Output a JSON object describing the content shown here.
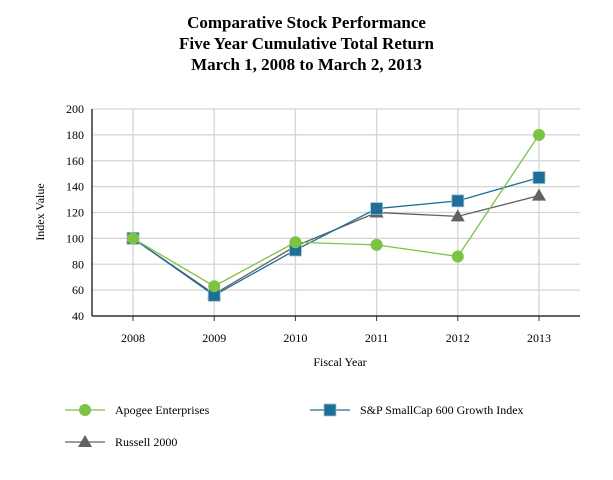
{
  "chart_data": {
    "type": "line",
    "title": [
      "Comparative Stock Performance",
      "Five Year Cumulative Total Return",
      "March 1, 2008 to March 2, 2013"
    ],
    "xlabel": "Fiscal Year",
    "ylabel": "Index Value",
    "ylim": [
      40,
      200
    ],
    "yticks": [
      40,
      60,
      80,
      100,
      120,
      140,
      160,
      180,
      200
    ],
    "categories": [
      "2008",
      "2009",
      "2010",
      "2011",
      "2012",
      "2013"
    ],
    "grid": true,
    "legend_position": "bottom",
    "series": [
      {
        "name": "Apogee Enterprises",
        "marker": "circle",
        "color": "#7dc242",
        "values": [
          100,
          63,
          97,
          95,
          86,
          180
        ]
      },
      {
        "name": "S&P SmallCap 600 Growth Index",
        "marker": "square",
        "color": "#1f6e96",
        "values": [
          100,
          56,
          91,
          123,
          129,
          147
        ]
      },
      {
        "name": "Russell 2000",
        "marker": "triangle",
        "color": "#616161",
        "values": [
          100,
          57,
          94,
          120,
          117,
          133
        ]
      }
    ]
  }
}
